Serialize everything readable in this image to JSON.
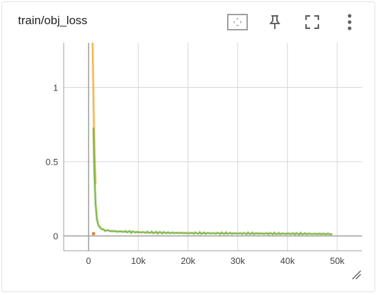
{
  "card": {
    "title": "train/obj_loss",
    "toolbar": [
      {
        "name": "data-selection-button",
        "icon": "fit-domain-icon"
      },
      {
        "name": "pin-button",
        "icon": "pin-icon"
      },
      {
        "name": "fullscreen-button",
        "icon": "fullscreen-icon"
      },
      {
        "name": "more-menu-button",
        "icon": "more-vert-icon"
      }
    ]
  },
  "chart_data": {
    "type": "line",
    "title": "train/obj_loss",
    "xlabel": "",
    "ylabel": "",
    "xlim": [
      -5000,
      55000
    ],
    "ylim": [
      -0.1,
      1.3
    ],
    "x_ticks": [
      0,
      10000,
      20000,
      30000,
      40000,
      50000
    ],
    "x_tick_labels": [
      "0",
      "10k",
      "20k",
      "30k",
      "40k",
      "50k"
    ],
    "y_ticks": [
      0,
      0.5,
      1
    ],
    "y_tick_labels": [
      "0",
      "0.5",
      "1"
    ],
    "grid": true,
    "series": [
      {
        "color": "#f5b041",
        "x": [
          800,
          900,
          1000,
          1100,
          1200,
          1400
        ],
        "y": [
          1.3,
          1.1,
          0.9,
          0.72,
          0.55,
          0.35
        ]
      },
      {
        "color": "#7cb342",
        "x": [
          1000,
          1100,
          1200,
          1400,
          1700,
          2000,
          2500,
          3000,
          4000,
          5000,
          6000,
          8000,
          10000,
          13000,
          16000,
          20000,
          25000,
          30000,
          35000,
          40000,
          45000,
          49000
        ],
        "y": [
          0.73,
          0.55,
          0.4,
          0.22,
          0.11,
          0.07,
          0.05,
          0.04,
          0.035,
          0.032,
          0.03,
          0.028,
          0.025,
          0.023,
          0.021,
          0.019,
          0.018,
          0.017,
          0.016,
          0.015,
          0.014,
          0.013
        ]
      }
    ],
    "markers": [
      {
        "x": 1000,
        "y": 0.015,
        "color": "#e8833a"
      }
    ]
  }
}
